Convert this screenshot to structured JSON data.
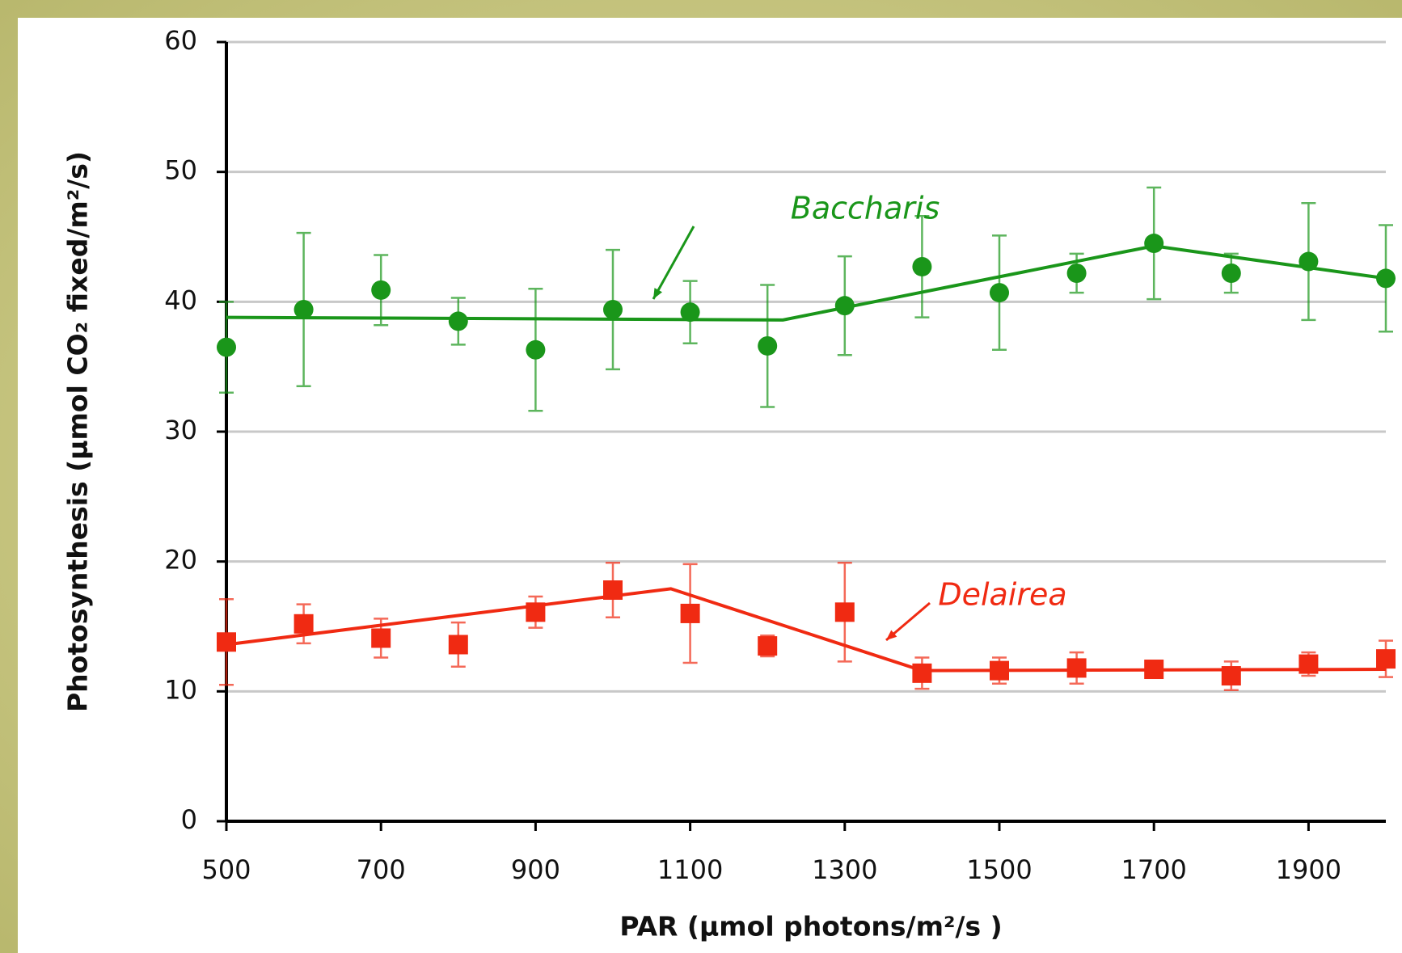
{
  "chart_data": {
    "type": "scatter",
    "x_label": "PAR (µmol photons/m²/s )",
    "y_label": "Photosynthesis (µmol CO₂ fixed/m²/s)",
    "xlim": [
      500,
      2000
    ],
    "xticks": [
      500,
      700,
      900,
      1100,
      1300,
      1500,
      1700,
      1900
    ],
    "ylim": [
      0,
      60
    ],
    "yticks": [
      0,
      10,
      20,
      30,
      40,
      50,
      60
    ],
    "grid": true,
    "series": [
      {
        "name": "Baccharis",
        "color": "#1a961a",
        "marker": "circle",
        "x": [
          500,
          600,
          700,
          800,
          900,
          1000,
          1100,
          1200,
          1300,
          1400,
          1500,
          1600,
          1700,
          1800,
          1900,
          2000
        ],
        "values": [
          36.5,
          39.4,
          40.9,
          38.5,
          36.3,
          39.4,
          39.2,
          36.6,
          39.7,
          42.7,
          40.7,
          42.2,
          44.5,
          42.2,
          43.1,
          41.8
        ],
        "errors": [
          3.5,
          5.9,
          2.7,
          1.8,
          4.7,
          4.6,
          2.4,
          4.7,
          3.8,
          3.9,
          4.4,
          1.5,
          4.3,
          1.5,
          4.5,
          4.1
        ],
        "trend_x": [
          500,
          1220,
          1700,
          2000
        ],
        "trend_values": [
          38.8,
          38.6,
          44.3,
          41.8
        ]
      },
      {
        "name": "Delairea",
        "color": "#f02a12",
        "marker": "square",
        "x": [
          500,
          600,
          700,
          800,
          900,
          1000,
          1100,
          1200,
          1300,
          1400,
          1500,
          1600,
          1700,
          1800,
          1900,
          2000
        ],
        "values": [
          13.8,
          15.2,
          14.1,
          13.6,
          16.1,
          17.8,
          16.0,
          13.5,
          16.1,
          11.4,
          11.6,
          11.8,
          11.7,
          11.2,
          12.1,
          12.5
        ],
        "errors": [
          3.3,
          1.5,
          1.5,
          1.7,
          1.2,
          2.1,
          3.8,
          0.8,
          3.8,
          1.2,
          1.0,
          1.2,
          0.6,
          1.1,
          0.9,
          1.4
        ],
        "trend_x": [
          500,
          1075,
          1400,
          2000
        ],
        "trend_values": [
          13.6,
          17.9,
          11.6,
          11.7
        ]
      }
    ]
  }
}
